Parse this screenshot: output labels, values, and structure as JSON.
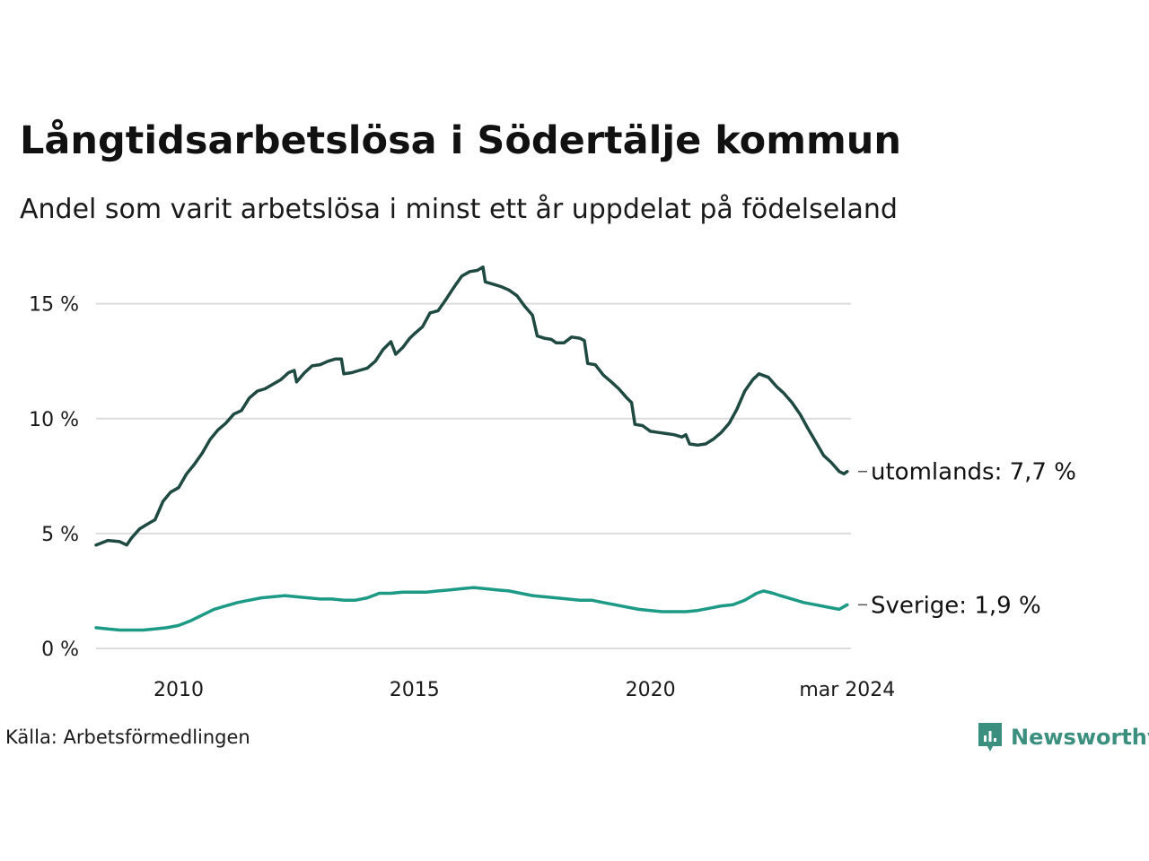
{
  "title": "Långtidsarbetslösa i Södertälje kommun",
  "subtitle": "Andel som varit arbetslösa i minst ett år uppdelat på födelseland",
  "source": "Källa: Arbetsförmedlingen",
  "brand": {
    "name": "Newsworthy",
    "icon": "newsworthy-logo-icon",
    "color": "#3a8f7f"
  },
  "chart_data": {
    "type": "line",
    "title": "Långtidsarbetslösa i Södertälje kommun",
    "xlabel": "",
    "ylabel": "",
    "xlim": [
      2008.25,
      2024.25
    ],
    "ylim": [
      0,
      16.5
    ],
    "yticks": [
      0,
      5,
      10,
      15
    ],
    "ytick_labels": [
      "0 %",
      "5 %",
      "10 %",
      "15 %"
    ],
    "xticks": [
      2010,
      2015,
      2020,
      2024.17
    ],
    "xtick_labels": [
      "2010",
      "2015",
      "2020",
      "mar 2024"
    ],
    "grid": true,
    "series": [
      {
        "name": "utomlands",
        "end_label": "utomlands: 7,7 %",
        "color": "#1f4a42",
        "points": [
          [
            2008.25,
            4.5
          ],
          [
            2008.5,
            4.7
          ],
          [
            2008.75,
            4.65
          ],
          [
            2008.9,
            4.5
          ],
          [
            2009.0,
            4.8
          ],
          [
            2009.17,
            5.2
          ],
          [
            2009.33,
            5.4
          ],
          [
            2009.5,
            5.6
          ],
          [
            2009.67,
            6.4
          ],
          [
            2009.83,
            6.8
          ],
          [
            2010.0,
            7.0
          ],
          [
            2010.17,
            7.6
          ],
          [
            2010.33,
            8.0
          ],
          [
            2010.5,
            8.5
          ],
          [
            2010.67,
            9.1
          ],
          [
            2010.83,
            9.5
          ],
          [
            2011.0,
            9.8
          ],
          [
            2011.17,
            10.2
          ],
          [
            2011.33,
            10.35
          ],
          [
            2011.5,
            10.9
          ],
          [
            2011.67,
            11.2
          ],
          [
            2011.83,
            11.3
          ],
          [
            2012.0,
            11.5
          ],
          [
            2012.17,
            11.7
          ],
          [
            2012.33,
            12.0
          ],
          [
            2012.45,
            12.1
          ],
          [
            2012.5,
            11.6
          ],
          [
            2012.67,
            12.0
          ],
          [
            2012.83,
            12.3
          ],
          [
            2013.0,
            12.35
          ],
          [
            2013.17,
            12.5
          ],
          [
            2013.33,
            12.6
          ],
          [
            2013.45,
            12.6
          ],
          [
            2013.5,
            11.95
          ],
          [
            2013.67,
            12.0
          ],
          [
            2013.83,
            12.1
          ],
          [
            2014.0,
            12.2
          ],
          [
            2014.17,
            12.5
          ],
          [
            2014.33,
            13.0
          ],
          [
            2014.5,
            13.35
          ],
          [
            2014.6,
            12.8
          ],
          [
            2014.75,
            13.1
          ],
          [
            2014.9,
            13.5
          ],
          [
            2015.0,
            13.7
          ],
          [
            2015.17,
            14.0
          ],
          [
            2015.33,
            14.6
          ],
          [
            2015.5,
            14.7
          ],
          [
            2015.67,
            15.2
          ],
          [
            2015.83,
            15.7
          ],
          [
            2016.0,
            16.2
          ],
          [
            2016.17,
            16.4
          ],
          [
            2016.33,
            16.45
          ],
          [
            2016.45,
            16.6
          ],
          [
            2016.5,
            15.95
          ],
          [
            2016.67,
            15.85
          ],
          [
            2016.83,
            15.75
          ],
          [
            2017.0,
            15.6
          ],
          [
            2017.17,
            15.35
          ],
          [
            2017.33,
            14.9
          ],
          [
            2017.5,
            14.5
          ],
          [
            2017.6,
            13.6
          ],
          [
            2017.75,
            13.5
          ],
          [
            2017.9,
            13.45
          ],
          [
            2018.0,
            13.3
          ],
          [
            2018.17,
            13.3
          ],
          [
            2018.33,
            13.55
          ],
          [
            2018.5,
            13.5
          ],
          [
            2018.6,
            13.4
          ],
          [
            2018.67,
            12.4
          ],
          [
            2018.83,
            12.35
          ],
          [
            2019.0,
            11.9
          ],
          [
            2019.17,
            11.6
          ],
          [
            2019.33,
            11.3
          ],
          [
            2019.5,
            10.9
          ],
          [
            2019.6,
            10.7
          ],
          [
            2019.67,
            9.75
          ],
          [
            2019.83,
            9.7
          ],
          [
            2020.0,
            9.45
          ],
          [
            2020.17,
            9.4
          ],
          [
            2020.33,
            9.35
          ],
          [
            2020.5,
            9.3
          ],
          [
            2020.67,
            9.2
          ],
          [
            2020.75,
            9.3
          ],
          [
            2020.83,
            8.9
          ],
          [
            2021.0,
            8.85
          ],
          [
            2021.17,
            8.9
          ],
          [
            2021.33,
            9.1
          ],
          [
            2021.5,
            9.4
          ],
          [
            2021.67,
            9.8
          ],
          [
            2021.83,
            10.4
          ],
          [
            2022.0,
            11.2
          ],
          [
            2022.17,
            11.7
          ],
          [
            2022.3,
            11.95
          ],
          [
            2022.5,
            11.8
          ],
          [
            2022.67,
            11.4
          ],
          [
            2022.83,
            11.1
          ],
          [
            2023.0,
            10.7
          ],
          [
            2023.17,
            10.2
          ],
          [
            2023.33,
            9.6
          ],
          [
            2023.5,
            9.0
          ],
          [
            2023.67,
            8.4
          ],
          [
            2023.83,
            8.1
          ],
          [
            2024.0,
            7.7
          ],
          [
            2024.1,
            7.6
          ],
          [
            2024.17,
            7.7
          ]
        ]
      },
      {
        "name": "Sverige",
        "end_label": "Sverige: 1,9 %",
        "color": "#1d9a86",
        "points": [
          [
            2008.25,
            0.9
          ],
          [
            2008.5,
            0.85
          ],
          [
            2008.75,
            0.8
          ],
          [
            2009.0,
            0.8
          ],
          [
            2009.25,
            0.8
          ],
          [
            2009.5,
            0.85
          ],
          [
            2009.75,
            0.9
          ],
          [
            2010.0,
            1.0
          ],
          [
            2010.25,
            1.2
          ],
          [
            2010.5,
            1.45
          ],
          [
            2010.75,
            1.7
          ],
          [
            2011.0,
            1.85
          ],
          [
            2011.25,
            2.0
          ],
          [
            2011.5,
            2.1
          ],
          [
            2011.75,
            2.2
          ],
          [
            2012.0,
            2.25
          ],
          [
            2012.25,
            2.3
          ],
          [
            2012.5,
            2.25
          ],
          [
            2012.75,
            2.2
          ],
          [
            2013.0,
            2.15
          ],
          [
            2013.25,
            2.15
          ],
          [
            2013.5,
            2.1
          ],
          [
            2013.75,
            2.1
          ],
          [
            2014.0,
            2.2
          ],
          [
            2014.25,
            2.4
          ],
          [
            2014.5,
            2.4
          ],
          [
            2014.75,
            2.45
          ],
          [
            2015.0,
            2.45
          ],
          [
            2015.25,
            2.45
          ],
          [
            2015.5,
            2.5
          ],
          [
            2015.75,
            2.55
          ],
          [
            2016.0,
            2.6
          ],
          [
            2016.25,
            2.65
          ],
          [
            2016.5,
            2.6
          ],
          [
            2016.75,
            2.55
          ],
          [
            2017.0,
            2.5
          ],
          [
            2017.25,
            2.4
          ],
          [
            2017.5,
            2.3
          ],
          [
            2017.75,
            2.25
          ],
          [
            2018.0,
            2.2
          ],
          [
            2018.25,
            2.15
          ],
          [
            2018.5,
            2.1
          ],
          [
            2018.75,
            2.1
          ],
          [
            2019.0,
            2.0
          ],
          [
            2019.25,
            1.9
          ],
          [
            2019.5,
            1.8
          ],
          [
            2019.75,
            1.7
          ],
          [
            2020.0,
            1.65
          ],
          [
            2020.25,
            1.6
          ],
          [
            2020.5,
            1.6
          ],
          [
            2020.75,
            1.6
          ],
          [
            2021.0,
            1.65
          ],
          [
            2021.25,
            1.75
          ],
          [
            2021.5,
            1.85
          ],
          [
            2021.75,
            1.9
          ],
          [
            2022.0,
            2.1
          ],
          [
            2022.25,
            2.4
          ],
          [
            2022.4,
            2.5
          ],
          [
            2022.6,
            2.4
          ],
          [
            2022.75,
            2.3
          ],
          [
            2023.0,
            2.15
          ],
          [
            2023.25,
            2.0
          ],
          [
            2023.5,
            1.9
          ],
          [
            2023.75,
            1.8
          ],
          [
            2024.0,
            1.7
          ],
          [
            2024.17,
            1.9
          ]
        ]
      }
    ]
  }
}
